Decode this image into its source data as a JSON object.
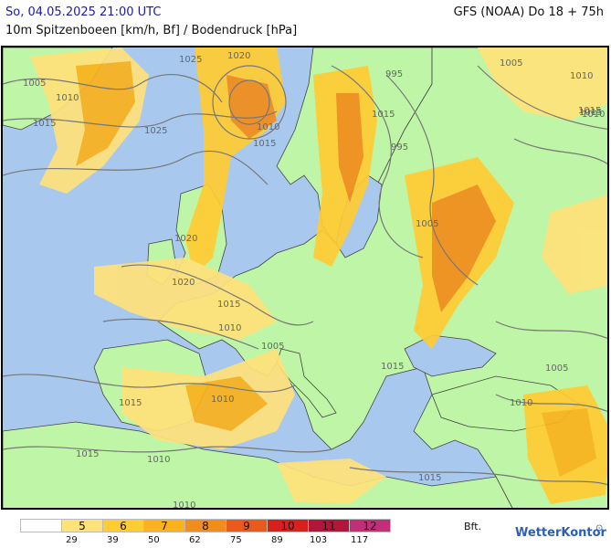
{
  "header": {
    "date_time": "So, 04.05.2025 21:00 UTC",
    "model_run": "GFS (NOAA) Do 18 + 75h",
    "parameter": "10m Spitzenboeen [km/h, Bf] / Bodendruck [hPa]"
  },
  "map": {
    "isobar_labels": [
      "1005",
      "1025",
      "1020",
      "995",
      "1005",
      "1010",
      "1010",
      "1015",
      "1015",
      "1025",
      "1015",
      "1010",
      "995",
      "1015",
      "1005",
      "1020",
      "1015",
      "1010",
      "1005",
      "1020",
      "1015",
      "1015",
      "1010",
      "1010",
      "1010",
      "1005",
      "1015",
      "1010",
      "1015",
      "1010",
      "1015"
    ]
  },
  "legend": {
    "cells": [
      "",
      "5",
      "6",
      "7",
      "8",
      "9",
      "10",
      "11",
      "12"
    ],
    "colors": [
      "#ffffff",
      "#ffe27a",
      "#ffcc33",
      "#fbb21c",
      "#f28c1a",
      "#ea5a1a",
      "#d9201c",
      "#b0173a",
      "#c12e7a"
    ],
    "ticks": [
      "29",
      "39",
      "50",
      "62",
      "75",
      "89",
      "103",
      "117"
    ],
    "unit": "Bft."
  },
  "logo": {
    "text": "WetterKontor",
    "mark": "⊙"
  },
  "colors": {
    "land": "#bff5a6",
    "sea": "#a9c8ee",
    "gust_5": "#ffe27a",
    "gust_6": "#ffcc33",
    "gust_7": "#fbb21c",
    "gust_8": "#f28c1a"
  }
}
